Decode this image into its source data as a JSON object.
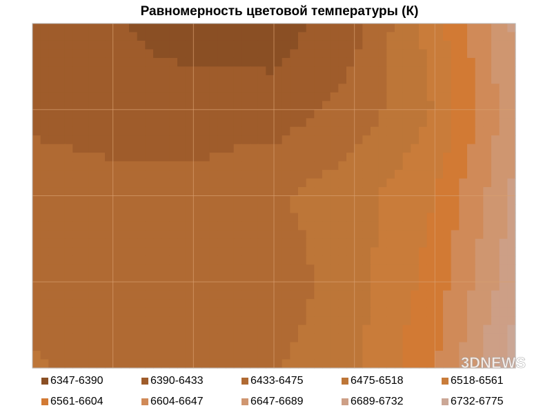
{
  "chart_data": {
    "type": "contour",
    "title": "Равномерность цветовой температуры (К)",
    "z": [
      [
        6400,
        6395,
        6360,
        6365,
        6420,
        6540,
        6700
      ],
      [
        6420,
        6410,
        6420,
        6410,
        6450,
        6520,
        6680
      ],
      [
        6460,
        6450,
        6440,
        6470,
        6500,
        6560,
        6700
      ],
      [
        6460,
        6450,
        6440,
        6450,
        6500,
        6580,
        6720
      ],
      [
        6480,
        6460,
        6440,
        6470,
        6510,
        6600,
        6760
      ]
    ],
    "levels": [
      6347,
      6390,
      6433,
      6475,
      6518,
      6561,
      6604,
      6647,
      6689,
      6732,
      6775
    ],
    "band_labels": [
      "6347-6390",
      "6390-6433",
      "6433-6475",
      "6475-6518",
      "6518-6561",
      "6561-6604",
      "6604-6647",
      "6647-6689",
      "6689-6732",
      "6732-6775"
    ],
    "colors": [
      "#8a4f24",
      "#9f5c2b",
      "#b06a33",
      "#bd7638",
      "#c97c3a",
      "#d27a34",
      "#d08a58",
      "#cf9670",
      "#cd9f86",
      "#cba796"
    ],
    "grid": true,
    "watermark": "3DNEWS"
  }
}
